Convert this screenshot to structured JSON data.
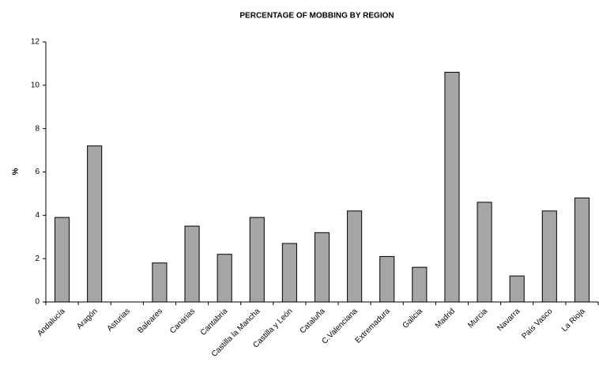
{
  "chart_data": {
    "type": "bar",
    "title": "PERCENTAGE OF MOBBING BY REGION",
    "y_label": "%",
    "categories": [
      "Andalucía",
      "Aragón",
      "Asturias",
      "Baleares",
      "Canarias",
      "Cantabria",
      "Castilla la Mancha",
      "Castilla y León",
      "Cataluña",
      "C.Valenciana",
      "Extremadura",
      "Galicia",
      "Madrid",
      "Murcia",
      "Navarra",
      "País Vasco",
      "La Rioja"
    ],
    "values": [
      3.9,
      7.2,
      0,
      1.8,
      3.5,
      2.2,
      3.9,
      2.7,
      3.2,
      4.2,
      2.1,
      1.6,
      10.6,
      4.6,
      1.2,
      4.2,
      4.8
    ],
    "color": "#a6a6a6",
    "ylim": [
      0,
      12
    ],
    "yticks": [
      0,
      2,
      4,
      6,
      8,
      10,
      12
    ],
    "grid": false
  }
}
